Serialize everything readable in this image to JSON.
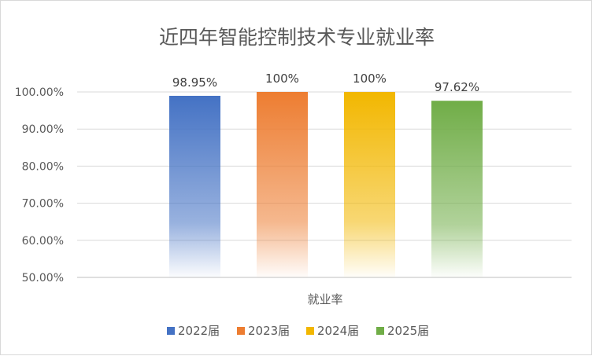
{
  "chart_data": {
    "type": "bar",
    "title": "近四年智能控制技术专业就业率",
    "xlabel": "就业率",
    "ylabel": "",
    "categories": [
      "就业率"
    ],
    "series": [
      {
        "name": "2022届",
        "values": [
          98.95
        ],
        "label": "98.95%",
        "color": "#4472c4"
      },
      {
        "name": "2023届",
        "values": [
          100
        ],
        "label": "100%",
        "color": "#ed7d31"
      },
      {
        "name": "2024届",
        "values": [
          100
        ],
        "label": "100%",
        "color": "#f2b700"
      },
      {
        "name": "2025届",
        "values": [
          97.62
        ],
        "label": "97.62%",
        "color": "#70ad47"
      }
    ],
    "ylim": [
      50,
      100
    ],
    "yticks": [
      "50.00%",
      "60.00%",
      "70.00%",
      "80.00%",
      "90.00%",
      "100.00%"
    ],
    "grid": true,
    "legend": "bottom",
    "bar_fill": "gradient fading to white toward the baseline"
  }
}
